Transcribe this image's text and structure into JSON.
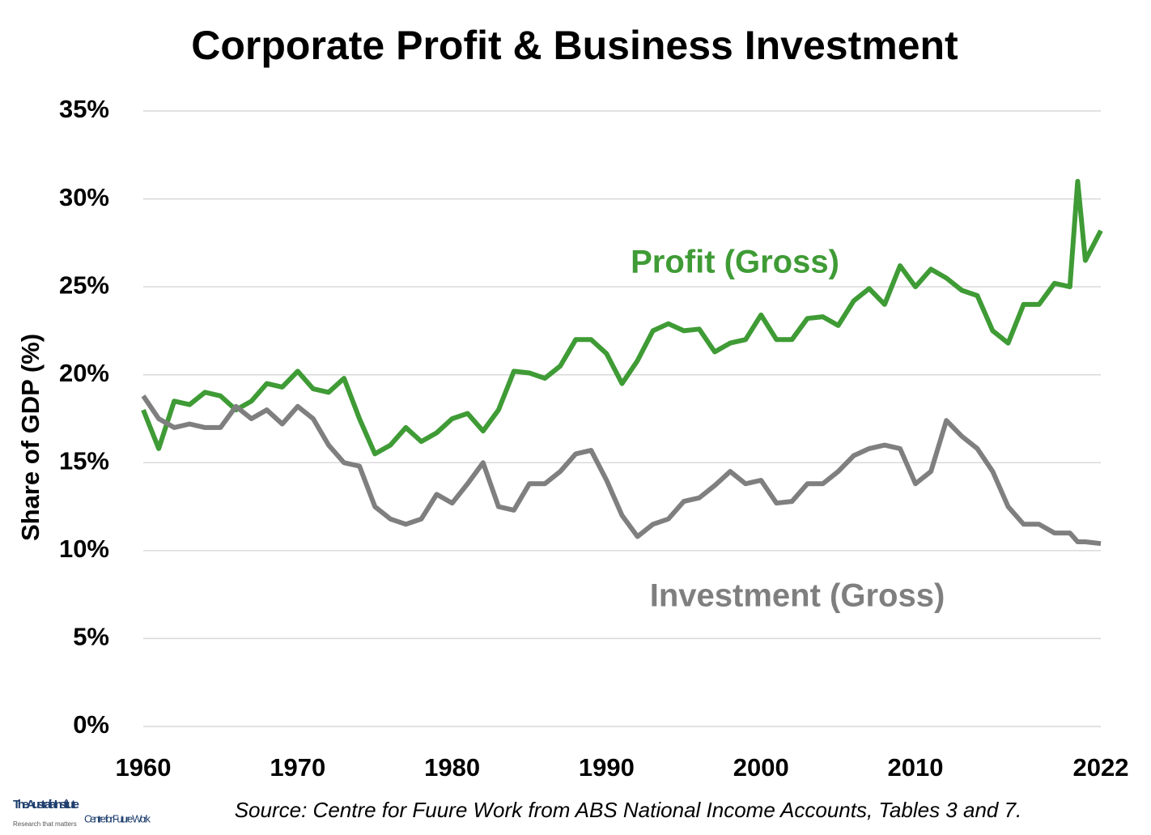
{
  "chart_data": {
    "type": "line",
    "title": "Corporate Profit & Business Investment",
    "y_label": "Share of GDP (%)",
    "source": "Source: Centre for Fuure Work from ABS National Income Accounts, Tables  3 and 7.",
    "logo": {
      "org": "The Australia Institute",
      "tagline": "Research that matters",
      "centre": "Centre for Future Work"
    },
    "x": [
      1960,
      1961,
      1962,
      1963,
      1964,
      1965,
      1966,
      1967,
      1968,
      1969,
      1970,
      1971,
      1972,
      1973,
      1974,
      1975,
      1976,
      1977,
      1978,
      1979,
      1980,
      1981,
      1982,
      1983,
      1984,
      1985,
      1986,
      1987,
      1988,
      1989,
      1990,
      1991,
      1992,
      1993,
      1994,
      1995,
      1996,
      1997,
      1998,
      1999,
      2000,
      2001,
      2002,
      2003,
      2004,
      2005,
      2006,
      2007,
      2008,
      2009,
      2010,
      2011,
      2012,
      2013,
      2014,
      2015,
      2016,
      2017,
      2018,
      2019,
      2020,
      2020.5,
      2021,
      2022
    ],
    "series": [
      {
        "name": "Profit (Gross)",
        "color": "#3f9b35",
        "values": [
          18,
          15.8,
          18.5,
          18.3,
          19,
          18.8,
          18,
          18.5,
          19.5,
          19.3,
          20.2,
          19.2,
          19,
          19.8,
          17.5,
          15.5,
          16,
          17,
          16.2,
          16.7,
          17.5,
          17.8,
          16.8,
          18,
          20.2,
          20.1,
          19.8,
          20.5,
          22,
          22,
          21.2,
          19.5,
          20.8,
          22.5,
          22.9,
          22.5,
          22.6,
          21.3,
          21.8,
          22,
          23.4,
          22,
          22,
          23.2,
          23.3,
          22.8,
          24.2,
          24.9,
          24,
          26.2,
          25,
          26,
          25.5,
          24.8,
          24.5,
          22.5,
          21.8,
          24,
          24,
          25.2,
          25,
          31,
          26.5,
          28.2
        ]
      },
      {
        "name": "Investment (Gross)",
        "color": "#7f7f7f",
        "values": [
          18.8,
          17.5,
          17,
          17.2,
          17,
          17,
          18.2,
          17.5,
          18,
          17.2,
          18.2,
          17.5,
          16,
          15,
          14.8,
          12.5,
          11.8,
          11.5,
          11.8,
          13.2,
          12.7,
          13.8,
          15,
          12.5,
          12.3,
          13.8,
          13.8,
          14.5,
          15.5,
          15.7,
          14,
          12,
          10.8,
          11.5,
          11.8,
          12.8,
          13,
          13.7,
          14.5,
          13.8,
          14,
          12.7,
          12.8,
          13.8,
          13.8,
          14.5,
          15.4,
          15.8,
          16,
          15.8,
          13.8,
          14.5,
          17.4,
          16.5,
          15.8,
          14.5,
          12.5,
          11.5,
          11.5,
          11,
          11,
          10.5,
          10.5,
          10.4
        ]
      }
    ],
    "xlim": [
      1960,
      2022
    ],
    "xticks": [
      1960,
      1970,
      1980,
      1990,
      2000,
      2010,
      2022
    ],
    "ylim": [
      0,
      35
    ],
    "yticks": [
      {
        "value": 0,
        "label": "0%"
      },
      {
        "value": 5,
        "label": "5%"
      },
      {
        "value": 10,
        "label": "10%"
      },
      {
        "value": 15,
        "label": "15%"
      },
      {
        "value": 20,
        "label": "20%"
      },
      {
        "value": 25,
        "label": "25%"
      },
      {
        "value": 30,
        "label": "30%"
      },
      {
        "value": 35,
        "label": "35%"
      }
    ],
    "grid": true
  }
}
